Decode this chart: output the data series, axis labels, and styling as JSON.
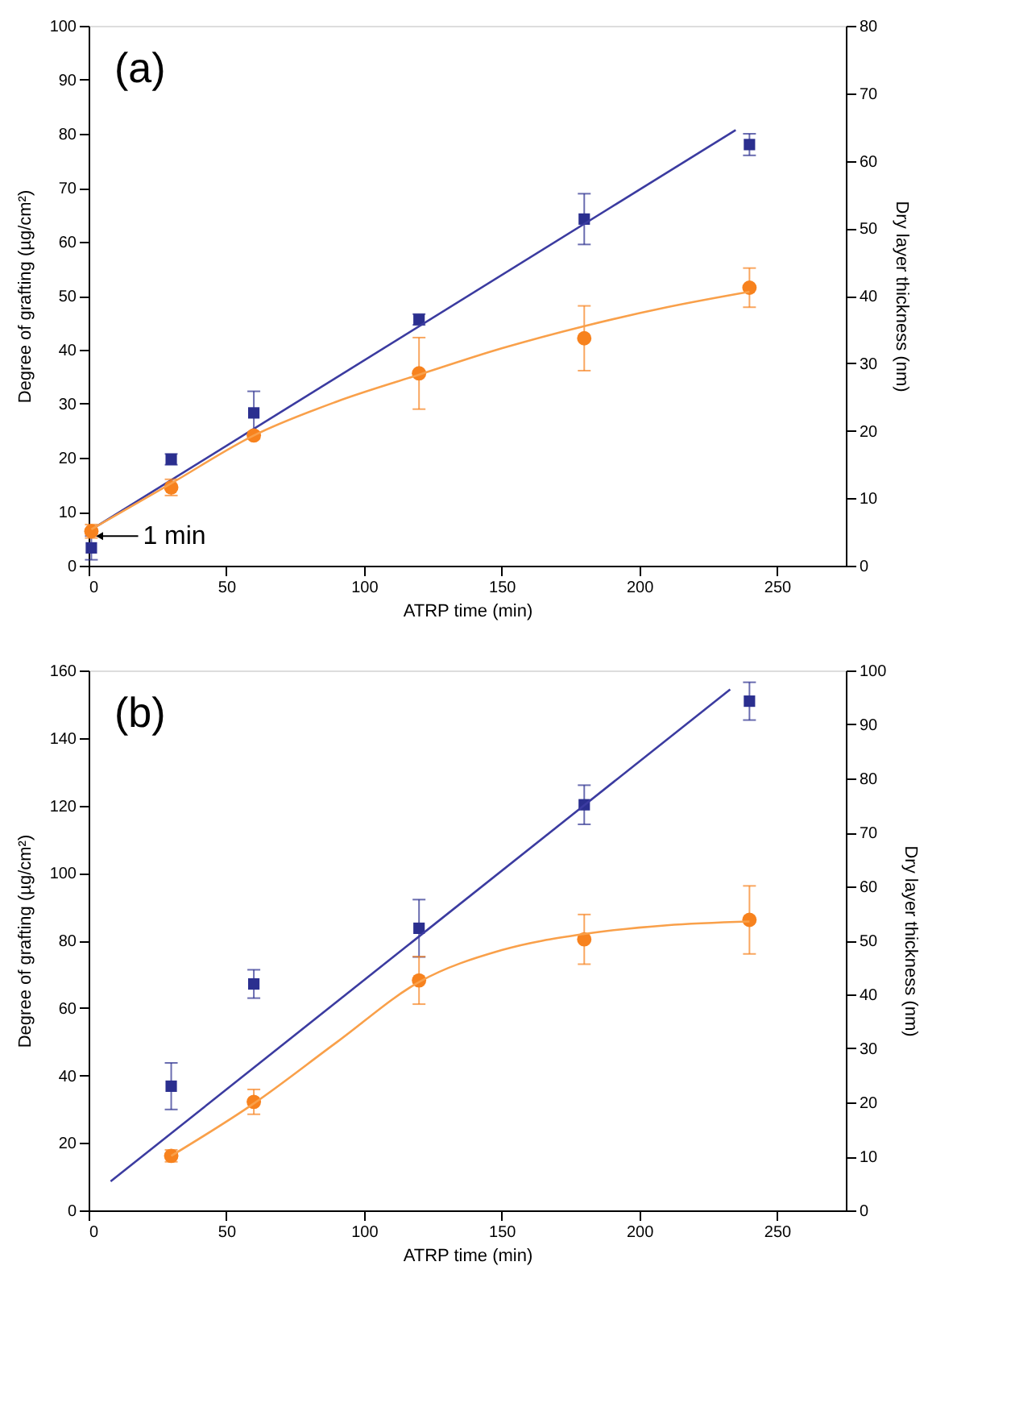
{
  "chart_data": [
    {
      "type": "scatter",
      "title": "(a)",
      "xlabel": "ATRP time (min)",
      "ylabel": "Degree of grafting (µg/cm²)",
      "y2label": "Dry layer thickness (nm)",
      "xlim": [
        0,
        275
      ],
      "xticks": [
        0,
        50,
        100,
        150,
        200,
        250
      ],
      "ylim": [
        0,
        100
      ],
      "yticks": [
        0,
        10,
        20,
        30,
        40,
        50,
        60,
        70,
        80,
        90,
        100
      ],
      "y2lim": [
        0,
        80
      ],
      "y2ticks": [
        0,
        10,
        20,
        30,
        40,
        50,
        60,
        70,
        80
      ],
      "grid": false,
      "annotations": [
        {
          "text": "1 min",
          "x": 1,
          "y": 5.5
        }
      ],
      "series": [
        {
          "marker": "square",
          "color": "#2b2f8f",
          "x": [
            1,
            30,
            60,
            120,
            180,
            240
          ],
          "values": [
            3.3,
            19.7,
            28.3,
            45.6,
            64.2,
            78.0
          ],
          "errors": [
            2.2,
            1,
            4,
            1,
            4.7,
            2
          ]
        },
        {
          "type": "line",
          "color": "#3b3ba0",
          "x": [
            1,
            235
          ],
          "values": [
            6.7,
            80.7
          ]
        },
        {
          "marker": "circle",
          "axis": "y2",
          "color": "#f7821e",
          "x": [
            1,
            30,
            60,
            120,
            180,
            240
          ],
          "values": [
            5.1,
            11.6,
            19.3,
            28.5,
            33.7,
            41.2
          ],
          "errors": [
            1,
            1.2,
            0.5,
            5.3,
            4.8,
            2.9
          ]
        },
        {
          "type": "line",
          "axis": "y2",
          "color": "#f9a04a",
          "x": [
            1,
            30,
            60,
            90,
            120,
            150,
            180,
            210,
            240
          ],
          "values": [
            5.4,
            12.2,
            19.3,
            24.3,
            28.3,
            32.2,
            35.5,
            38.3,
            40.6
          ]
        }
      ]
    },
    {
      "type": "scatter",
      "title": "(b)",
      "xlabel": "ATRP time (min)",
      "ylabel": "Degree of grafting (µg/cm²)",
      "y2label": "Dry layer thickness (nm)",
      "xlim": [
        0,
        275
      ],
      "xticks": [
        0,
        50,
        100,
        150,
        200,
        250
      ],
      "ylim": [
        0,
        160
      ],
      "yticks": [
        0,
        20,
        40,
        60,
        80,
        100,
        120,
        140,
        160
      ],
      "y2lim": [
        0,
        100
      ],
      "y2ticks": [
        0,
        10,
        20,
        30,
        40,
        50,
        60,
        70,
        80,
        90,
        100
      ],
      "grid": false,
      "series": [
        {
          "marker": "square",
          "color": "#2b2f8f",
          "x": [
            30,
            60,
            120,
            180,
            240
          ],
          "values": [
            36.8,
            67.1,
            83.6,
            120.2,
            150.9
          ],
          "errors": [
            6.9,
            4.2,
            8.5,
            5.8,
            5.6
          ]
        },
        {
          "type": "line",
          "color": "#3b3ba0",
          "x": [
            8,
            233
          ],
          "values": [
            8.6,
            154.4
          ]
        },
        {
          "marker": "circle",
          "axis": "y2",
          "color": "#f7821e",
          "x": [
            30,
            60,
            120,
            180,
            240
          ],
          "values": [
            10.1,
            20.1,
            42.6,
            50.2,
            53.8
          ],
          "errors": [
            1.1,
            2.3,
            4.4,
            4.6,
            6.3
          ]
        },
        {
          "type": "line",
          "axis": "y2",
          "color": "#f9a04a",
          "x": [
            30,
            60,
            90,
            120,
            150,
            180,
            210,
            240
          ],
          "values": [
            10.1,
            19.8,
            31.1,
            42.3,
            48.2,
            51.2,
            52.8,
            53.5
          ]
        }
      ]
    }
  ]
}
